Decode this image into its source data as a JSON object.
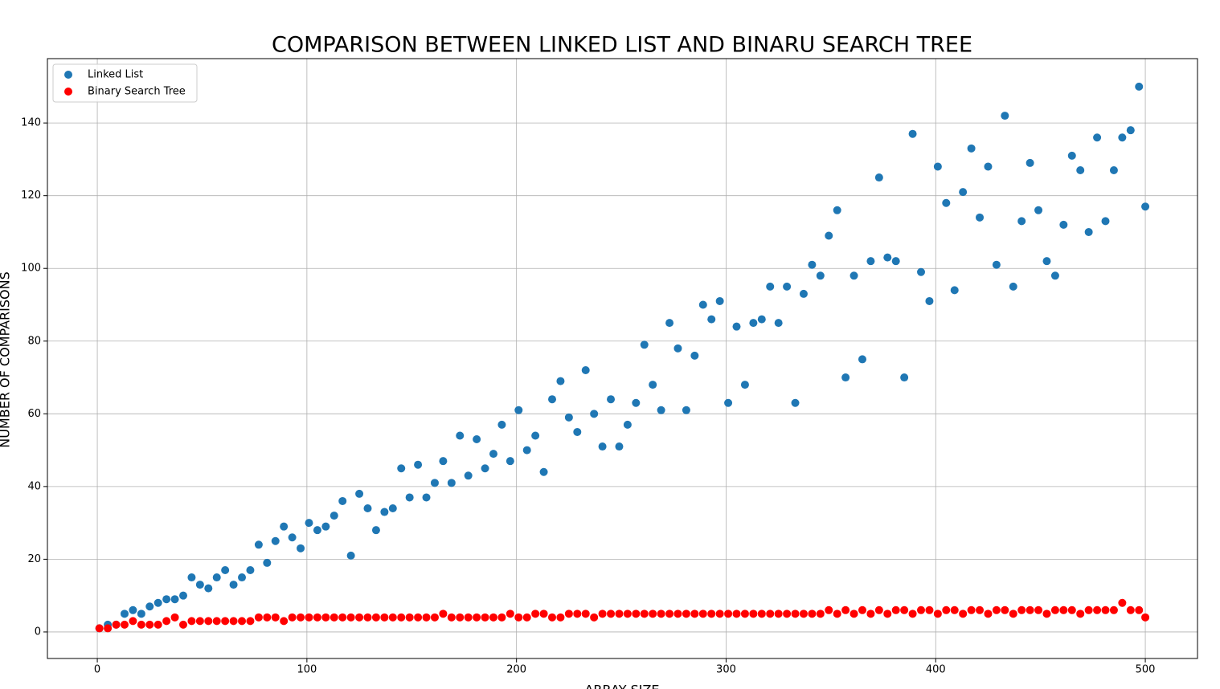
{
  "chart_data": {
    "type": "scatter",
    "title": "COMPARISON BETWEEN LINKED LIST AND BINARU SEARCH TREE",
    "x_label": "ARRAY SIZE",
    "y_label": "NUMBER OF COMPARISONS",
    "x": [
      1,
      5,
      9,
      13,
      17,
      21,
      25,
      29,
      33,
      37,
      41,
      45,
      49,
      53,
      57,
      61,
      65,
      69,
      73,
      77,
      81,
      85,
      89,
      93,
      97,
      101,
      105,
      109,
      113,
      117,
      121,
      125,
      129,
      133,
      137,
      141,
      145,
      149,
      153,
      157,
      161,
      165,
      169,
      173,
      177,
      181,
      185,
      189,
      193,
      197,
      201,
      205,
      209,
      213,
      217,
      221,
      225,
      229,
      233,
      237,
      241,
      245,
      249,
      253,
      257,
      261,
      265,
      269,
      273,
      277,
      281,
      285,
      289,
      293,
      297,
      301,
      305,
      309,
      313,
      317,
      321,
      325,
      329,
      333,
      337,
      341,
      345,
      349,
      353,
      357,
      361,
      365,
      369,
      373,
      377,
      381,
      385,
      389,
      393,
      397,
      401,
      405,
      409,
      413,
      417,
      421,
      425,
      429,
      433,
      437,
      441,
      445,
      449,
      453,
      457,
      461,
      465,
      469,
      473,
      477,
      481,
      485,
      489,
      493,
      497,
      500
    ],
    "series": [
      {
        "name": "Linked List",
        "color": "#1f77b4",
        "values": [
          1,
          2,
          2,
          5,
          6,
          5,
          7,
          8,
          9,
          9,
          10,
          15,
          13,
          12,
          15,
          17,
          13,
          15,
          17,
          24,
          19,
          25,
          29,
          26,
          23,
          30,
          28,
          29,
          32,
          36,
          21,
          38,
          34,
          28,
          33,
          34,
          45,
          37,
          46,
          37,
          41,
          47,
          41,
          54,
          43,
          53,
          45,
          49,
          57,
          47,
          61,
          50,
          54,
          44,
          64,
          69,
          59,
          55,
          72,
          60,
          51,
          64,
          51,
          57,
          63,
          79,
          68,
          61,
          85,
          78,
          61,
          76,
          90,
          86,
          91,
          63,
          84,
          68,
          85,
          86,
          95,
          85,
          95,
          63,
          93,
          101,
          98,
          109,
          116,
          70,
          98,
          75,
          102,
          125,
          103,
          102,
          70,
          137,
          99,
          91,
          128,
          118,
          94,
          121,
          133,
          114,
          128,
          101,
          142,
          95,
          113,
          129,
          116,
          102,
          98,
          112,
          131,
          127,
          110,
          136,
          113,
          127,
          136,
          138,
          150,
          117
        ]
      },
      {
        "name": "Binary Search Tree",
        "color": "#ff0000",
        "values": [
          1,
          1,
          2,
          2,
          3,
          2,
          2,
          2,
          3,
          4,
          2,
          3,
          3,
          3,
          3,
          3,
          3,
          3,
          3,
          4,
          4,
          4,
          3,
          4,
          4,
          4,
          4,
          4,
          4,
          4,
          4,
          4,
          4,
          4,
          4,
          4,
          4,
          4,
          4,
          4,
          4,
          5,
          4,
          4,
          4,
          4,
          4,
          4,
          4,
          5,
          4,
          4,
          5,
          5,
          4,
          4,
          5,
          5,
          5,
          4,
          5,
          5,
          5,
          5,
          5,
          5,
          5,
          5,
          5,
          5,
          5,
          5,
          5,
          5,
          5,
          5,
          5,
          5,
          5,
          5,
          5,
          5,
          5,
          5,
          5,
          5,
          5,
          6,
          5,
          6,
          5,
          6,
          5,
          6,
          5,
          6,
          6,
          5,
          6,
          6,
          5,
          6,
          6,
          5,
          6,
          6,
          5,
          6,
          6,
          5,
          6,
          6,
          6,
          5,
          6,
          6,
          6,
          5,
          6,
          6,
          6,
          6,
          8,
          6,
          6,
          4
        ]
      }
    ],
    "xlim": [
      -23.8,
      524.9
    ],
    "ylim": [
      -7.3,
      157.7
    ],
    "xticks": [
      0,
      100,
      200,
      300,
      400,
      500
    ],
    "yticks": [
      0,
      20,
      40,
      60,
      80,
      100,
      120,
      140
    ],
    "grid": true,
    "legend": "upper left"
  }
}
